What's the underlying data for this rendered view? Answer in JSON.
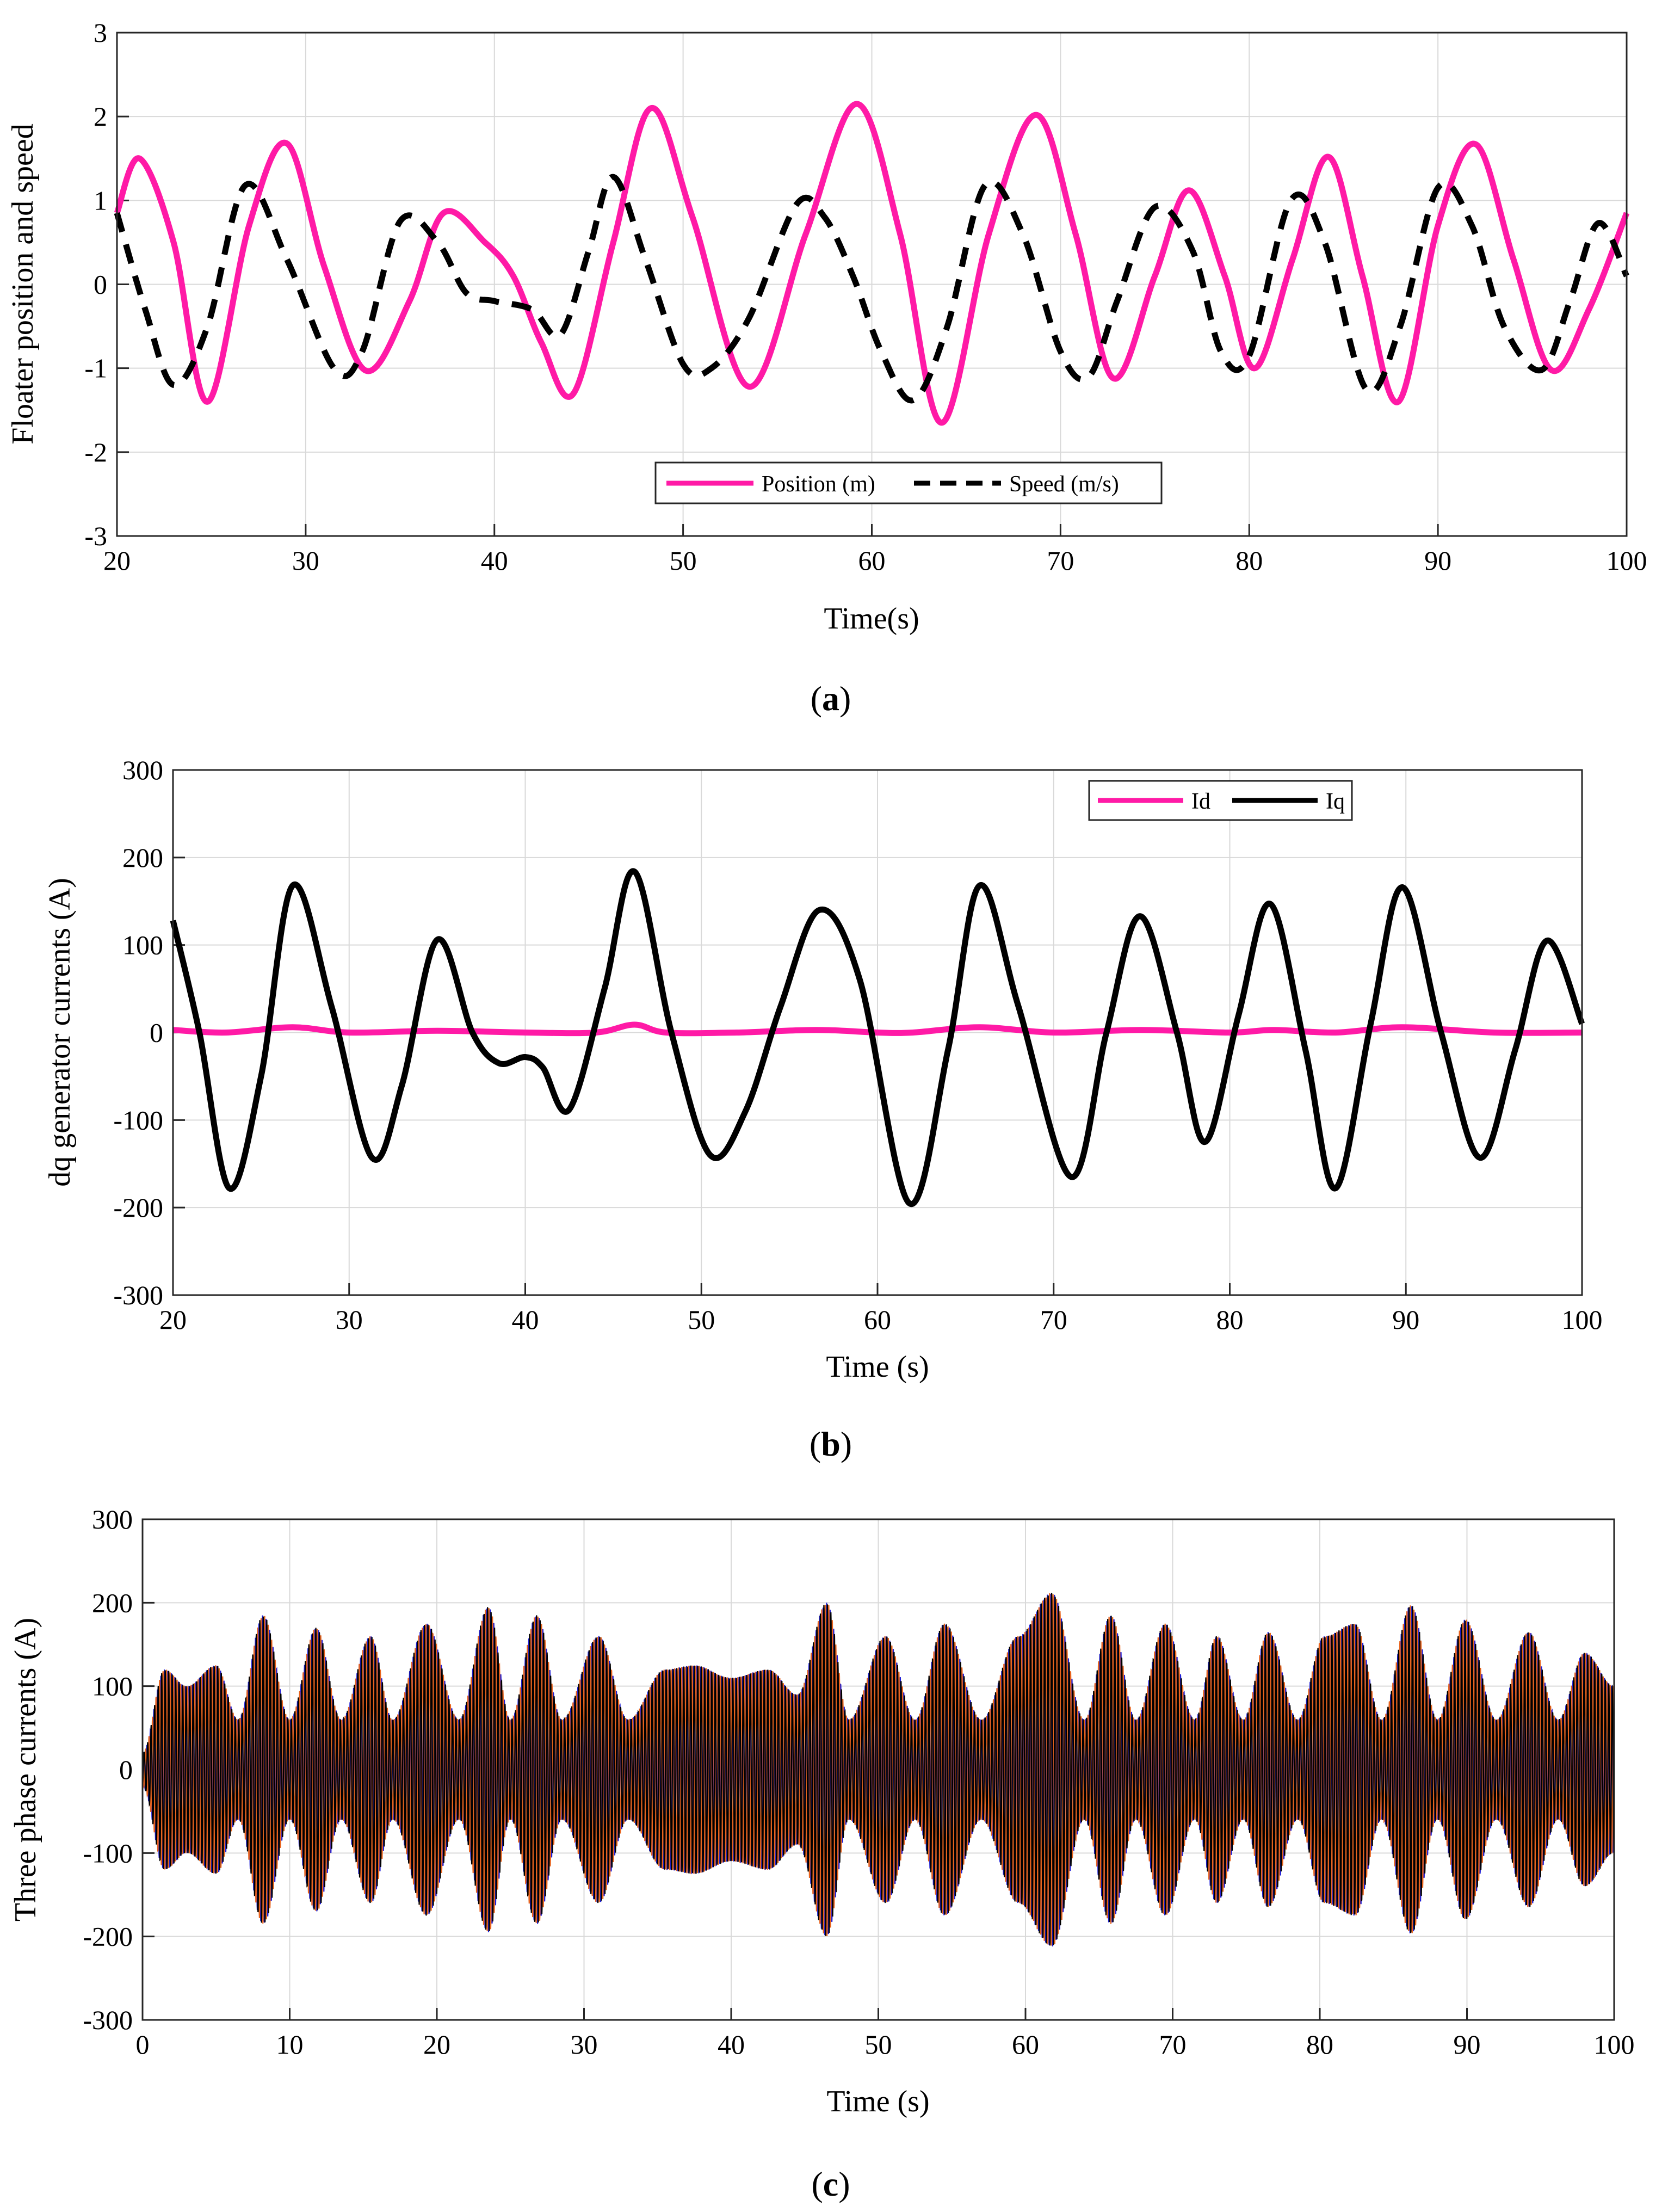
{
  "chart_data": [
    {
      "type": "line",
      "caption": "a",
      "xlabel": "Time(s)",
      "ylabel": "Floater position and speed",
      "xlim": [
        20,
        100
      ],
      "ylim": [
        -3,
        3
      ],
      "xticks": [
        20,
        30,
        40,
        50,
        60,
        70,
        80,
        90,
        100
      ],
      "yticks": [
        -3,
        -2,
        -1,
        0,
        1,
        2,
        3
      ],
      "grid": true,
      "legend": {
        "placement": "bottom-center",
        "orientation": "horizontal"
      },
      "series": [
        {
          "name": "Position (m)",
          "color": "#ff1aa6",
          "style": "solid",
          "x": [
            20,
            21.2,
            23,
            24.8,
            27,
            29,
            31,
            33.2,
            35.5,
            37.3,
            39.5,
            41,
            42.5,
            44.2,
            46.3,
            48.3,
            50.5,
            53.5,
            56.5,
            59.2,
            61.5,
            63.7,
            66.2,
            68.7,
            70.8,
            72.8,
            75,
            76.8,
            78.7,
            80.3,
            82.3,
            84.2,
            86,
            87.9,
            90,
            92,
            94,
            96,
            98,
            100
          ],
          "y": [
            0.85,
            1.5,
            0.5,
            -1.4,
            0.7,
            1.68,
            0.2,
            -1.03,
            -0.2,
            0.85,
            0.5,
            0.1,
            -0.7,
            -1.3,
            0.5,
            2.1,
            0.8,
            -1.22,
            0.6,
            2.15,
            0.6,
            -1.65,
            0.6,
            2.02,
            0.6,
            -1.12,
            0.1,
            1.12,
            0.1,
            -1.0,
            0.3,
            1.52,
            0.1,
            -1.4,
            0.7,
            1.67,
            0.3,
            -1.02,
            -0.3,
            0.85
          ]
        },
        {
          "name": "Speed (m/s)",
          "color": "#000000",
          "style": "dashed",
          "x": [
            20,
            21.5,
            23,
            24.8,
            26.8,
            29,
            31.5,
            33,
            35,
            37,
            38.5,
            40,
            42,
            43.5,
            45,
            46.3,
            48,
            50,
            51.5,
            53.5,
            56,
            57.5,
            59,
            60.5,
            62.2,
            64,
            66,
            68,
            70,
            71.5,
            73,
            75,
            77,
            78.5,
            80,
            82.2,
            84,
            86.2,
            88,
            90,
            91.8,
            93.5,
            95.5,
            97,
            98.5,
            100
          ],
          "y": [
            0.85,
            -0.3,
            -1.2,
            -0.5,
            1.18,
            0.3,
            -1.0,
            -0.8,
            0.75,
            0.5,
            -0.1,
            -0.2,
            -0.3,
            -0.6,
            0.4,
            1.28,
            0.3,
            -0.95,
            -1.0,
            -0.4,
            0.95,
            0.8,
            0.1,
            -0.8,
            -1.38,
            -0.5,
            1.18,
            0.6,
            -0.8,
            -1.1,
            -0.2,
            0.92,
            0.4,
            -0.8,
            -0.85,
            1.0,
            0.5,
            -1.25,
            -0.5,
            1.15,
            0.7,
            -0.5,
            -1.02,
            -0.2,
            0.73,
            0.1
          ]
        }
      ]
    },
    {
      "type": "line",
      "caption": "b",
      "xlabel": "Time (s)",
      "ylabel": "dq generator currents (A)",
      "xlim": [
        20,
        100
      ],
      "ylim": [
        -300,
        300
      ],
      "xticks": [
        20,
        30,
        40,
        50,
        60,
        70,
        80,
        90,
        100
      ],
      "yticks": [
        -300,
        -200,
        -100,
        0,
        100,
        200,
        300
      ],
      "grid": true,
      "legend": {
        "placement": "top-right",
        "orientation": "horizontal"
      },
      "series": [
        {
          "name": "Id",
          "color": "#ff1aa6",
          "style": "solid",
          "x": [
            20,
            23,
            26.8,
            30,
            35,
            40,
            44,
            46.2,
            48,
            52,
            56.5,
            60,
            62,
            65.8,
            70,
            75,
            80,
            82.5,
            86,
            89.8,
            95,
            100
          ],
          "y": [
            3,
            0,
            6,
            0,
            2,
            0,
            0,
            9,
            0,
            0,
            3,
            0,
            0,
            6,
            0,
            3,
            0,
            3,
            0,
            6,
            0,
            0
          ]
        },
        {
          "name": "Iq",
          "color": "#000000",
          "style": "solid",
          "x": [
            20,
            21.5,
            23.2,
            25,
            26.8,
            29,
            31.3,
            33,
            35,
            37,
            38.5,
            40,
            41,
            42.5,
            44.5,
            46.2,
            48.3,
            50.5,
            52.5,
            54.5,
            56.7,
            59,
            61.8,
            64,
            65.8,
            68,
            71,
            73,
            74.9,
            77,
            78.6,
            80.5,
            82.3,
            84.3,
            86,
            88,
            89.8,
            92,
            94.2,
            96.2,
            98,
            100
          ],
          "y": [
            128,
            0,
            -178,
            -50,
            168,
            30,
            -143,
            -60,
            106,
            0,
            -35,
            -28,
            -40,
            -88,
            50,
            184,
            0,
            -140,
            -90,
            30,
            140,
            60,
            -195,
            -20,
            168,
            30,
            -165,
            0,
            133,
            0,
            -125,
            20,
            147,
            -20,
            -178,
            10,
            166,
            0,
            -143,
            -20,
            105,
            10
          ]
        }
      ]
    },
    {
      "type": "line",
      "caption": "c",
      "xlabel": "Time (s)",
      "ylabel": "Three phase currents (A)",
      "xlim": [
        0,
        100
      ],
      "ylim": [
        -300,
        300
      ],
      "xticks": [
        0,
        10,
        20,
        30,
        40,
        50,
        60,
        70,
        80,
        90,
        100
      ],
      "yticks": [
        -300,
        -200,
        -100,
        0,
        100,
        200,
        300
      ],
      "grid": true,
      "series_colors": [
        "#1f1fd6",
        "#e8641e",
        "#000000"
      ],
      "envelope": {
        "t": [
          0,
          1.5,
          3,
          5,
          6.5,
          8.2,
          10,
          11.8,
          13.5,
          15.5,
          17,
          19.3,
          21.5,
          23.5,
          25,
          26.8,
          28.5,
          31,
          33,
          35.5,
          37.5,
          40,
          42.5,
          44.5,
          46.5,
          48,
          50.5,
          52.5,
          54.5,
          57,
          59.5,
          61.8,
          64,
          65.8,
          67.5,
          69.5,
          71.5,
          73,
          74.8,
          76.5,
          78.5,
          80.3,
          82.4,
          84.2,
          86.2,
          88,
          89.9,
          92,
          94.2,
          96.2,
          98,
          100
        ],
        "amp": [
          20,
          120,
          100,
          125,
          60,
          185,
          60,
          170,
          60,
          160,
          60,
          175,
          60,
          195,
          60,
          185,
          60,
          160,
          60,
          120,
          125,
          110,
          120,
          90,
          200,
          60,
          160,
          60,
          175,
          60,
          160,
          212,
          60,
          185,
          60,
          175,
          60,
          160,
          60,
          165,
          60,
          160,
          175,
          60,
          197,
          60,
          180,
          60,
          165,
          60,
          140,
          100
        ]
      }
    }
  ]
}
